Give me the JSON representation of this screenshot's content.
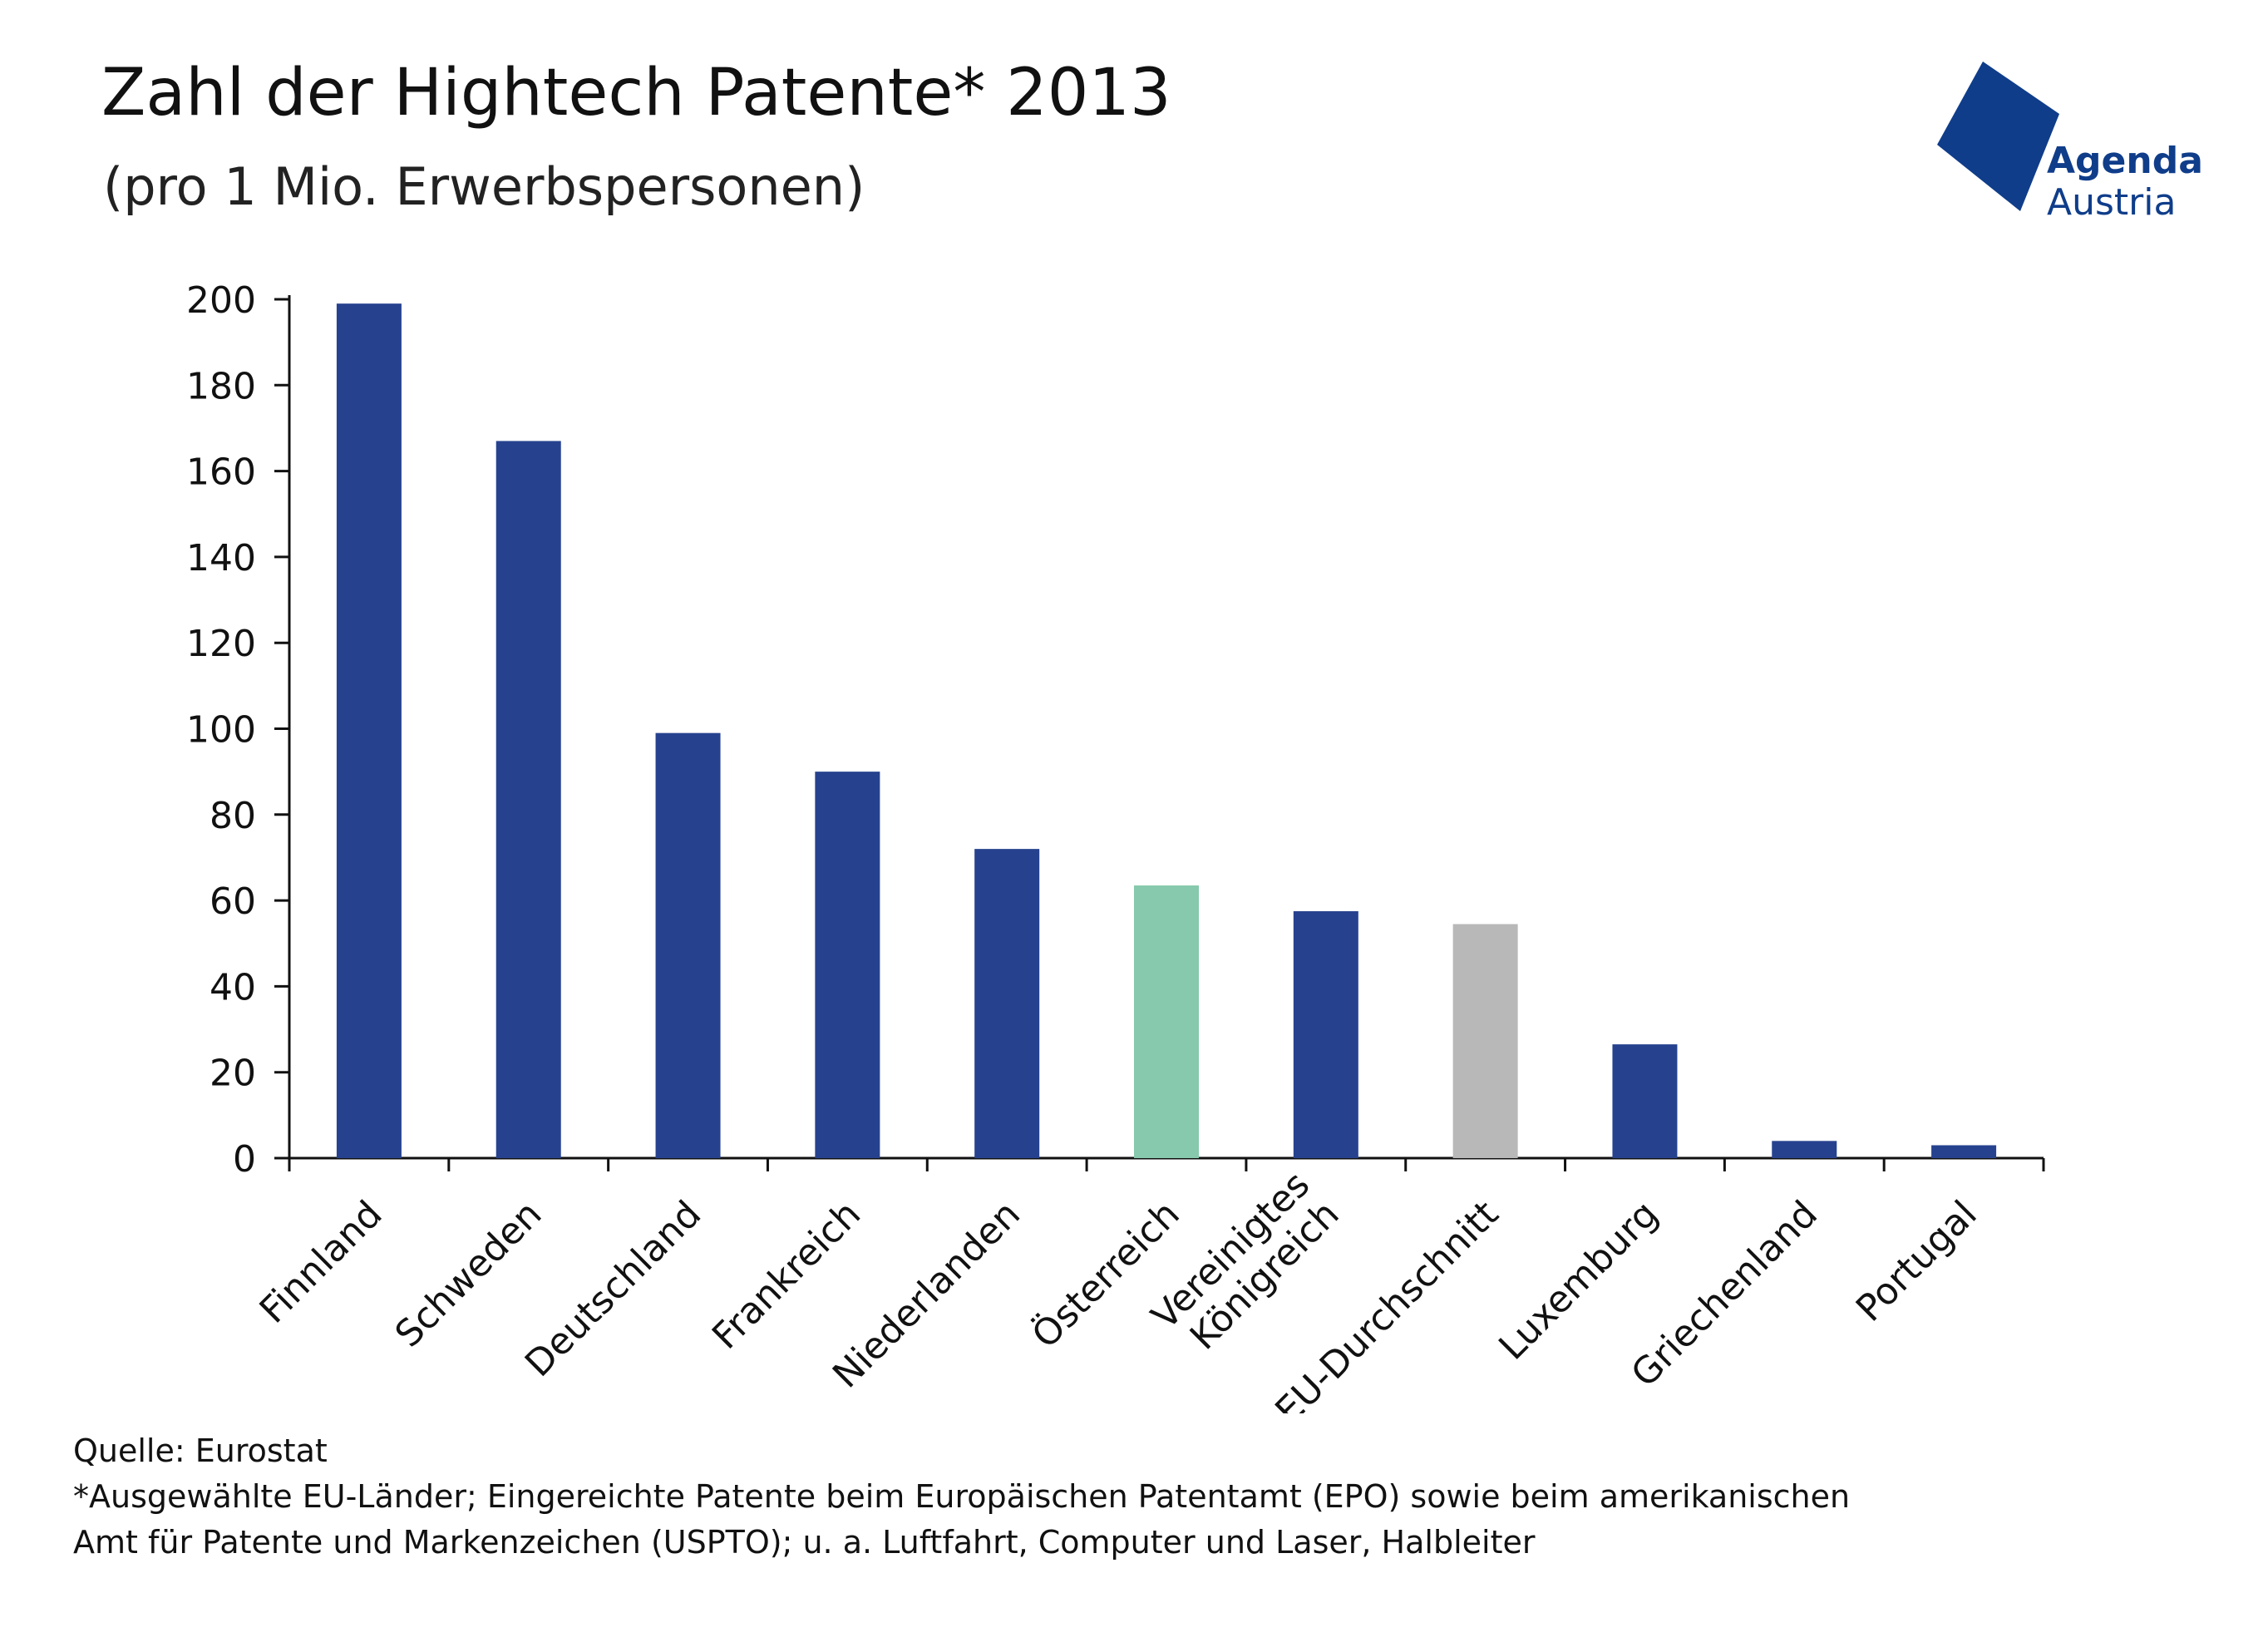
{
  "title": "Zahl der Hightech Patente* 2013",
  "subtitle": "(pro 1 Mio. Erwerbspersonen)",
  "logo": {
    "line1": "Agenda",
    "line2": "Austria",
    "color": "#0f3d8a"
  },
  "colors": {
    "default": "#26428f",
    "highlight": "#86c9ac",
    "average": "#b8b8b8",
    "axis": "#111111"
  },
  "chart_data": {
    "type": "bar",
    "categories": [
      [
        "Finnland"
      ],
      [
        "Schweden"
      ],
      [
        "Deutschland"
      ],
      [
        "Frankreich"
      ],
      [
        "Niederlanden"
      ],
      [
        "Österreich"
      ],
      [
        "Vereinigtes",
        "Königreich"
      ],
      [
        "EU-Durchschnitt"
      ],
      [
        "Luxemburg"
      ],
      [
        "Griechenland"
      ],
      [
        "Portugal"
      ]
    ],
    "values": [
      199,
      167,
      99,
      90,
      72,
      63.5,
      57.5,
      54.5,
      26.5,
      4,
      3
    ],
    "bar_colors": [
      "default",
      "default",
      "default",
      "default",
      "default",
      "highlight",
      "default",
      "average",
      "default",
      "default",
      "default"
    ],
    "ylim": [
      0,
      200
    ],
    "yticks": [
      0,
      20,
      40,
      60,
      80,
      100,
      120,
      140,
      160,
      180,
      200
    ],
    "xlabel": "",
    "ylabel": "",
    "grid": false
  },
  "footer": {
    "source": "Quelle: Eurostat",
    "note_line1": "*Ausgewählte EU-Länder; Eingereichte Patente beim Europäischen Patentamt (EPO) sowie beim amerikanischen",
    "note_line2": "Amt für Patente und Markenzeichen (USPTO); u. a. Luftfahrt, Computer und Laser, Halbleiter"
  }
}
